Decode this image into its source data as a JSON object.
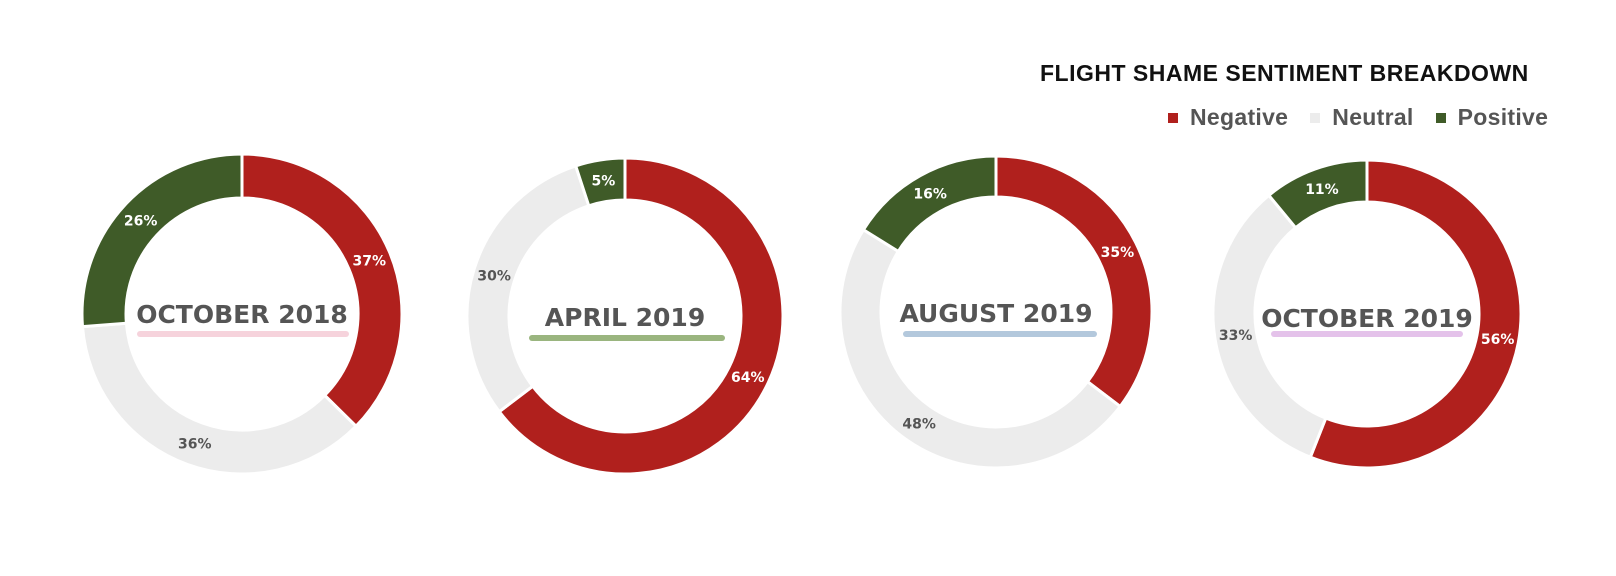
{
  "chart_data": {
    "type": "donut",
    "title": "FLIGHT SHAME SENTIMENT BREAKDOWN",
    "legend": {
      "placement": "top-right",
      "entries": [
        "Negative",
        "Neutral",
        "Positive"
      ]
    },
    "colors": {
      "Negative": "#b0201d",
      "Neutral": "#ececec",
      "Positive": "#3f5b28"
    },
    "label_colors": {
      "Negative": "#ffffff",
      "Neutral": "#555555",
      "Positive": "#ffffff"
    },
    "charts": [
      {
        "label": "OCTOBER 2018",
        "underline_color": "#f6d3dc",
        "slices": [
          {
            "name": "Negative",
            "value": 37,
            "label": "37%"
          },
          {
            "name": "Neutral",
            "value": 36,
            "label": "36%"
          },
          {
            "name": "Positive",
            "value": 26,
            "label": "26%"
          }
        ]
      },
      {
        "label": "APRIL 2019",
        "underline_color": "#9ab57f",
        "slices": [
          {
            "name": "Negative",
            "value": 64,
            "label": "64%"
          },
          {
            "name": "Neutral",
            "value": 30,
            "label": "30%"
          },
          {
            "name": "Positive",
            "value": 5,
            "label": "5%"
          }
        ]
      },
      {
        "label": "AUGUST 2019",
        "underline_color": "#b3c8dc",
        "slices": [
          {
            "name": "Negative",
            "value": 35,
            "label": "35%"
          },
          {
            "name": "Neutral",
            "value": 48,
            "label": "48%"
          },
          {
            "name": "Positive",
            "value": 16,
            "label": "16%"
          }
        ]
      },
      {
        "label": "OCTOBER 2019",
        "underline_color": "#e4c2ea",
        "slices": [
          {
            "name": "Negative",
            "value": 56,
            "label": "56%"
          },
          {
            "name": "Neutral",
            "value": 33,
            "label": "33%"
          },
          {
            "name": "Positive",
            "value": 11,
            "label": "11%"
          }
        ]
      }
    ]
  }
}
